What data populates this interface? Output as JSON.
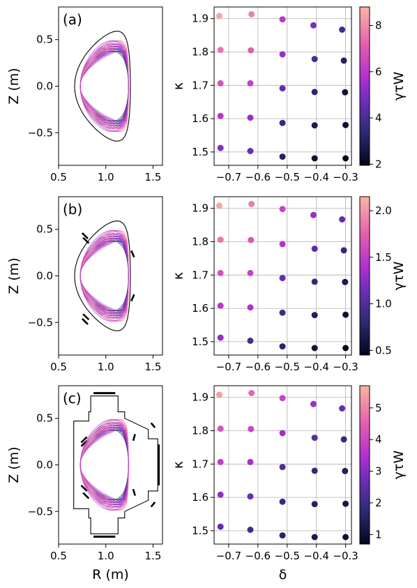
{
  "chart_data": [
    {
      "type": "line",
      "panel_label": "(a)",
      "xlabel": "",
      "ylabel": "Z (m)",
      "xlim": [
        0.5,
        1.6
      ],
      "ylim": [
        -0.85,
        0.85
      ],
      "xticks": [
        0.5,
        1.0,
        1.5
      ],
      "xtick_labels": [
        "0.5",
        "1.0",
        "1.5"
      ],
      "yticks": [
        -0.5,
        0.0,
        0.5
      ],
      "ytick_labels": [
        "−0.5",
        "0.0",
        "0.5"
      ],
      "wall": "smooth",
      "plasma_shapes": {
        "R0": 0.985,
        "a": 0.255,
        "kappa": [
          1.48,
          1.58,
          1.68,
          1.78,
          1.91
        ],
        "delta": [
          -0.73,
          -0.62,
          -0.52,
          -0.41,
          -0.3
        ]
      }
    },
    {
      "type": "scatter",
      "xlabel": "",
      "ylabel": "κ",
      "xlim": [
        -0.75,
        -0.28
      ],
      "ylim": [
        1.46,
        1.935
      ],
      "xticks": [
        -0.7,
        -0.6,
        -0.5,
        -0.4,
        -0.3
      ],
      "xtick_labels": [
        "−0.7",
        "−0.6",
        "−0.5",
        "−0.4",
        "−0.3"
      ],
      "yticks": [
        1.5,
        1.6,
        1.7,
        1.8,
        1.9
      ],
      "ytick_labels": [
        "1.5",
        "1.6",
        "1.7",
        "1.8",
        "1.9"
      ],
      "grid": true,
      "colorbar": {
        "label": "γτW",
        "range": [
          1.95,
          8.8
        ],
        "ticks": [
          2,
          4,
          6,
          8
        ],
        "tick_labels": [
          "2",
          "4",
          "6",
          "8"
        ]
      },
      "points": [
        {
          "x": -0.728,
          "y": 1.512,
          "c": 5.0
        },
        {
          "x": -0.728,
          "y": 1.608,
          "c": 5.9
        },
        {
          "x": -0.728,
          "y": 1.706,
          "c": 6.8
        },
        {
          "x": -0.728,
          "y": 1.806,
          "c": 7.6
        },
        {
          "x": -0.732,
          "y": 1.908,
          "c": 8.5
        },
        {
          "x": -0.626,
          "y": 1.503,
          "c": 4.6
        },
        {
          "x": -0.626,
          "y": 1.603,
          "c": 5.4
        },
        {
          "x": -0.626,
          "y": 1.706,
          "c": 6.3
        },
        {
          "x": -0.624,
          "y": 1.805,
          "c": 7.1
        },
        {
          "x": -0.622,
          "y": 1.913,
          "c": 7.8
        },
        {
          "x": -0.516,
          "y": 1.486,
          "c": 3.1
        },
        {
          "x": -0.516,
          "y": 1.587,
          "c": 3.6
        },
        {
          "x": -0.516,
          "y": 1.691,
          "c": 4.5
        },
        {
          "x": -0.516,
          "y": 1.793,
          "c": 5.3
        },
        {
          "x": -0.516,
          "y": 1.898,
          "c": 6.0
        },
        {
          "x": -0.406,
          "y": 1.481,
          "c": 2.4
        },
        {
          "x": -0.406,
          "y": 1.58,
          "c": 2.8
        },
        {
          "x": -0.406,
          "y": 1.68,
          "c": 3.3
        },
        {
          "x": -0.406,
          "y": 1.779,
          "c": 4.0
        },
        {
          "x": -0.41,
          "y": 1.88,
          "c": 4.9
        },
        {
          "x": -0.3,
          "y": 1.481,
          "c": 2.0
        },
        {
          "x": -0.3,
          "y": 1.581,
          "c": 2.2
        },
        {
          "x": -0.302,
          "y": 1.679,
          "c": 2.5
        },
        {
          "x": -0.306,
          "y": 1.774,
          "c": 3.1
        },
        {
          "x": -0.312,
          "y": 1.867,
          "c": 3.9
        }
      ]
    },
    {
      "type": "line",
      "panel_label": "(b)",
      "xlabel": "",
      "ylabel": "Z (m)",
      "xlim": [
        0.5,
        1.6
      ],
      "ylim": [
        -0.85,
        0.85
      ],
      "xticks": [
        0.5,
        1.0,
        1.5
      ],
      "xtick_labels": [
        "0.5",
        "1.0",
        "1.5"
      ],
      "yticks": [
        -0.5,
        0.0,
        0.5
      ],
      "ytick_labels": [
        "−0.5",
        "0.0",
        "0.5"
      ],
      "wall": "smooth-with-coils",
      "plasma_shapes": {
        "R0": 0.985,
        "a": 0.255,
        "kappa": [
          1.48,
          1.58,
          1.68,
          1.78,
          1.91
        ],
        "delta": [
          -0.73,
          -0.62,
          -0.52,
          -0.41,
          -0.3
        ]
      }
    },
    {
      "type": "scatter",
      "xlabel": "",
      "ylabel": "κ",
      "xlim": [
        -0.75,
        -0.28
      ],
      "ylim": [
        1.46,
        1.935
      ],
      "xticks": [
        -0.7,
        -0.6,
        -0.5,
        -0.4,
        -0.3
      ],
      "xtick_labels": [
        "−0.7",
        "−0.6",
        "−0.5",
        "−0.4",
        "−0.3"
      ],
      "yticks": [
        1.5,
        1.6,
        1.7,
        1.8,
        1.9
      ],
      "ytick_labels": [
        "1.5",
        "1.6",
        "1.7",
        "1.8",
        "1.9"
      ],
      "grid": true,
      "colorbar": {
        "label": "γτW",
        "range": [
          0.45,
          2.15
        ],
        "ticks": [
          0.5,
          1.0,
          1.5,
          2.0
        ],
        "tick_labels": [
          "0.5",
          "1.0",
          "1.5",
          "2.0"
        ]
      },
      "points": [
        {
          "x": -0.728,
          "y": 1.512,
          "c": 1.28
        },
        {
          "x": -0.728,
          "y": 1.608,
          "c": 1.45
        },
        {
          "x": -0.728,
          "y": 1.706,
          "c": 1.65
        },
        {
          "x": -0.728,
          "y": 1.806,
          "c": 1.85
        },
        {
          "x": -0.732,
          "y": 1.908,
          "c": 2.08
        },
        {
          "x": -0.626,
          "y": 1.503,
          "c": 0.95
        },
        {
          "x": -0.626,
          "y": 1.603,
          "c": 1.4
        },
        {
          "x": -0.626,
          "y": 1.706,
          "c": 1.55
        },
        {
          "x": -0.624,
          "y": 1.805,
          "c": 1.7
        },
        {
          "x": -0.622,
          "y": 1.913,
          "c": 1.88
        },
        {
          "x": -0.516,
          "y": 1.486,
          "c": 0.75
        },
        {
          "x": -0.516,
          "y": 1.587,
          "c": 0.9
        },
        {
          "x": -0.516,
          "y": 1.691,
          "c": 1.1
        },
        {
          "x": -0.516,
          "y": 1.793,
          "c": 1.4
        },
        {
          "x": -0.516,
          "y": 1.898,
          "c": 1.55
        },
        {
          "x": -0.406,
          "y": 1.481,
          "c": 0.6
        },
        {
          "x": -0.406,
          "y": 1.58,
          "c": 0.7
        },
        {
          "x": -0.406,
          "y": 1.68,
          "c": 0.82
        },
        {
          "x": -0.406,
          "y": 1.779,
          "c": 1.05
        },
        {
          "x": -0.41,
          "y": 1.88,
          "c": 1.3
        },
        {
          "x": -0.3,
          "y": 1.481,
          "c": 0.48
        },
        {
          "x": -0.3,
          "y": 1.581,
          "c": 0.55
        },
        {
          "x": -0.302,
          "y": 1.679,
          "c": 0.65
        },
        {
          "x": -0.306,
          "y": 1.774,
          "c": 0.85
        },
        {
          "x": -0.312,
          "y": 1.867,
          "c": 1.08
        }
      ]
    },
    {
      "type": "line",
      "panel_label": "(c)",
      "xlabel": "R (m)",
      "ylabel": "Z (m)",
      "xlim": [
        0.5,
        1.6
      ],
      "ylim": [
        -0.85,
        0.85
      ],
      "xticks": [
        0.5,
        1.0,
        1.5
      ],
      "xtick_labels": [
        "0.5",
        "1.0",
        "1.5"
      ],
      "yticks": [
        -0.5,
        0.0,
        0.5
      ],
      "ytick_labels": [
        "−0.5",
        "0.0",
        "0.5"
      ],
      "wall": "polygon-with-coils",
      "plasma_shapes": {
        "R0": 0.985,
        "a": 0.255,
        "kappa": [
          1.48,
          1.58,
          1.68,
          1.78,
          1.91
        ],
        "delta": [
          -0.73,
          -0.62,
          -0.52,
          -0.41,
          -0.3
        ]
      }
    },
    {
      "type": "scatter",
      "xlabel": "δ",
      "ylabel": "κ",
      "xlim": [
        -0.75,
        -0.28
      ],
      "ylim": [
        1.46,
        1.935
      ],
      "xticks": [
        -0.7,
        -0.6,
        -0.5,
        -0.4,
        -0.3
      ],
      "xtick_labels": [
        "−0.7",
        "−0.6",
        "−0.5",
        "−0.4",
        "−0.3"
      ],
      "yticks": [
        1.5,
        1.6,
        1.7,
        1.8,
        1.9
      ],
      "ytick_labels": [
        "1.5",
        "1.6",
        "1.7",
        "1.8",
        "1.9"
      ],
      "grid": true,
      "colorbar": {
        "label": "γτW",
        "range": [
          0.7,
          5.7
        ],
        "ticks": [
          1,
          2,
          3,
          4,
          5
        ],
        "tick_labels": [
          "1",
          "2",
          "3",
          "4",
          "5"
        ]
      },
      "points": [
        {
          "x": -0.728,
          "y": 1.512,
          "c": 2.6
        },
        {
          "x": -0.728,
          "y": 1.608,
          "c": 3.1
        },
        {
          "x": -0.728,
          "y": 1.706,
          "c": 3.8
        },
        {
          "x": -0.728,
          "y": 1.806,
          "c": 4.3
        },
        {
          "x": -0.732,
          "y": 1.908,
          "c": 5.4
        },
        {
          "x": -0.626,
          "y": 1.503,
          "c": 2.1
        },
        {
          "x": -0.626,
          "y": 1.603,
          "c": 2.6
        },
        {
          "x": -0.626,
          "y": 1.706,
          "c": 3.4
        },
        {
          "x": -0.624,
          "y": 1.805,
          "c": 4.0
        },
        {
          "x": -0.622,
          "y": 1.913,
          "c": 4.6
        },
        {
          "x": -0.516,
          "y": 1.486,
          "c": 1.6
        },
        {
          "x": -0.516,
          "y": 1.587,
          "c": 1.9
        },
        {
          "x": -0.516,
          "y": 1.691,
          "c": 2.3
        },
        {
          "x": -0.516,
          "y": 1.793,
          "c": 3.3
        },
        {
          "x": -0.516,
          "y": 1.898,
          "c": 3.9
        },
        {
          "x": -0.406,
          "y": 1.481,
          "c": 1.3
        },
        {
          "x": -0.406,
          "y": 1.58,
          "c": 1.5
        },
        {
          "x": -0.406,
          "y": 1.68,
          "c": 1.8
        },
        {
          "x": -0.406,
          "y": 1.779,
          "c": 2.4
        },
        {
          "x": -0.41,
          "y": 1.88,
          "c": 3.2
        },
        {
          "x": -0.3,
          "y": 1.481,
          "c": 1.0
        },
        {
          "x": -0.3,
          "y": 1.581,
          "c": 1.2
        },
        {
          "x": -0.302,
          "y": 1.679,
          "c": 1.4
        },
        {
          "x": -0.306,
          "y": 1.774,
          "c": 1.9
        },
        {
          "x": -0.312,
          "y": 1.867,
          "c": 2.6
        }
      ]
    }
  ]
}
